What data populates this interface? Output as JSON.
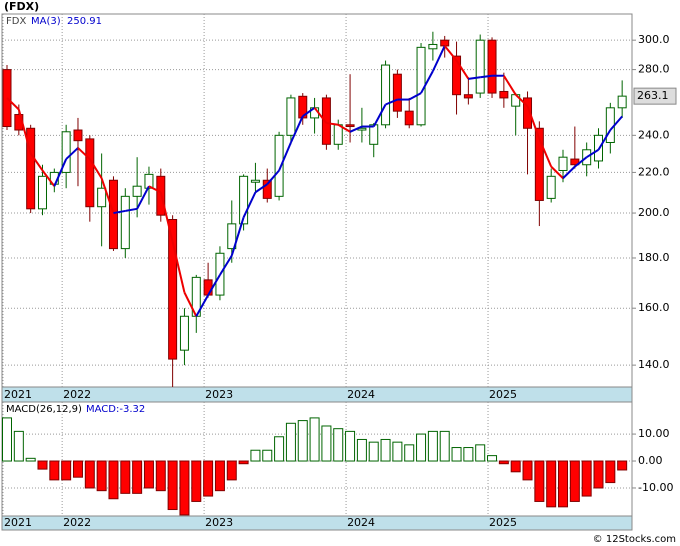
{
  "chart_data": [
    {
      "type": "candlestick",
      "title": "(FDX)",
      "symbol": "FDX",
      "ma_name": "MA(3)",
      "categories": [
        "2021",
        null,
        null,
        null,
        null,
        "2022",
        null,
        null,
        null,
        null,
        null,
        null,
        null,
        null,
        null,
        null,
        null,
        "2023",
        null,
        null,
        null,
        null,
        null,
        null,
        null,
        null,
        null,
        null,
        null,
        "2024",
        null,
        null,
        null,
        null,
        null,
        null,
        null,
        null,
        null,
        null,
        null,
        "2025",
        null,
        null,
        null,
        null,
        null,
        null,
        null,
        null,
        null,
        null,
        null
      ],
      "open": [
        280,
        252,
        244,
        202,
        214,
        220,
        243,
        238,
        203,
        216,
        184,
        208,
        212,
        218,
        197,
        145,
        157,
        171,
        165,
        184,
        195,
        215,
        216,
        208,
        240,
        263,
        250,
        262,
        235,
        246,
        243,
        235,
        246,
        277,
        254,
        246,
        294,
        300,
        289,
        264,
        265,
        300,
        266,
        257,
        262,
        244,
        207,
        221,
        227,
        224,
        226,
        236,
        256
      ],
      "high": [
        283,
        258,
        246,
        224,
        222,
        246,
        250,
        240,
        230,
        218,
        212,
        228,
        223,
        222,
        199,
        160,
        173,
        178,
        185,
        206,
        219,
        225,
        222,
        242,
        264,
        265,
        262,
        264,
        249,
        277,
        256,
        247,
        286,
        280,
        262,
        298,
        306,
        303,
        299,
        275,
        304,
        302,
        278,
        265,
        266,
        248,
        222,
        232,
        245,
        236,
        244,
        259,
        273
      ],
      "low": [
        243,
        240,
        200,
        199,
        210,
        212,
        213,
        196,
        185,
        183,
        180,
        198,
        204,
        196,
        133,
        140,
        151,
        164,
        163,
        178,
        192,
        210,
        205,
        206,
        235,
        246,
        241,
        232,
        232,
        236,
        236,
        228,
        244,
        250,
        244,
        245,
        286,
        288,
        252,
        258,
        262,
        262,
        256,
        240,
        219,
        194,
        205,
        215,
        222,
        218,
        222,
        230,
        250
      ],
      "close": [
        245,
        243,
        202,
        218,
        220,
        242,
        237,
        203,
        212,
        184,
        208,
        213,
        219,
        199,
        142,
        157,
        172,
        165,
        182,
        195,
        218,
        216,
        207,
        240,
        262,
        250,
        256,
        235,
        246,
        245,
        244,
        246,
        283,
        254,
        246,
        295,
        297,
        296,
        264,
        262,
        300,
        265,
        262,
        264,
        244,
        206,
        218,
        228,
        224,
        232,
        240,
        256,
        263.1
      ],
      "ma": [
        262,
        255,
        230,
        221,
        213,
        227,
        233,
        227,
        217,
        200,
        201,
        202,
        213,
        210,
        187,
        166,
        157,
        165,
        173,
        181,
        198,
        210,
        214,
        221,
        236,
        251,
        256,
        247,
        246,
        242,
        245,
        245,
        258,
        261,
        261,
        265,
        279,
        296,
        286,
        274,
        275,
        276,
        276,
        264,
        257,
        238,
        223,
        217,
        223,
        228,
        232,
        243,
        250.91
      ],
      "up_color": "#006400",
      "down_color": "#ff0000",
      "ma_up_color": "#0000cc",
      "ma_down_color": "#ee0000",
      "log_scale": true,
      "grid": true,
      "ylim": [
        133,
        319
      ],
      "yticks": [
        {
          "value": 140,
          "label": "140.0"
        },
        {
          "value": 160,
          "label": "160.0"
        },
        {
          "value": 180,
          "label": "180.0"
        },
        {
          "value": 200,
          "label": "200.0"
        },
        {
          "value": 220,
          "label": "220.0"
        },
        {
          "value": 240,
          "label": "240.0"
        },
        {
          "value": 280,
          "label": "280.0"
        },
        {
          "value": 300,
          "label": "300.0"
        }
      ]
    },
    {
      "type": "macd",
      "title": "MACD(26,12,9)",
      "value_label": "MACD:-3.32",
      "values": [
        16,
        11,
        1,
        -3,
        -7,
        -7,
        -6,
        -10,
        -11,
        -14,
        -12,
        -12,
        -10,
        -11,
        -18,
        -20,
        -15,
        -13,
        -11,
        -7,
        -1,
        4,
        4,
        9,
        14,
        15,
        16,
        13,
        12,
        11,
        8,
        7,
        8,
        7,
        6,
        10,
        11,
        11,
        5,
        5,
        6,
        2,
        -1,
        -4,
        -7,
        -15,
        -17,
        -17,
        -15,
        -13,
        -10,
        -8,
        -3.32
      ],
      "up_color": "#006400",
      "down_color": "#ff0000",
      "grid": true,
      "ylim": [
        -20.4,
        21.9
      ],
      "yticks": [
        {
          "value": 10,
          "label": "10.00"
        },
        {
          "value": 0,
          "label": "0.00"
        },
        {
          "value": -10,
          "label": "-10.00"
        }
      ]
    }
  ],
  "credit": "© 12Stocks.com"
}
